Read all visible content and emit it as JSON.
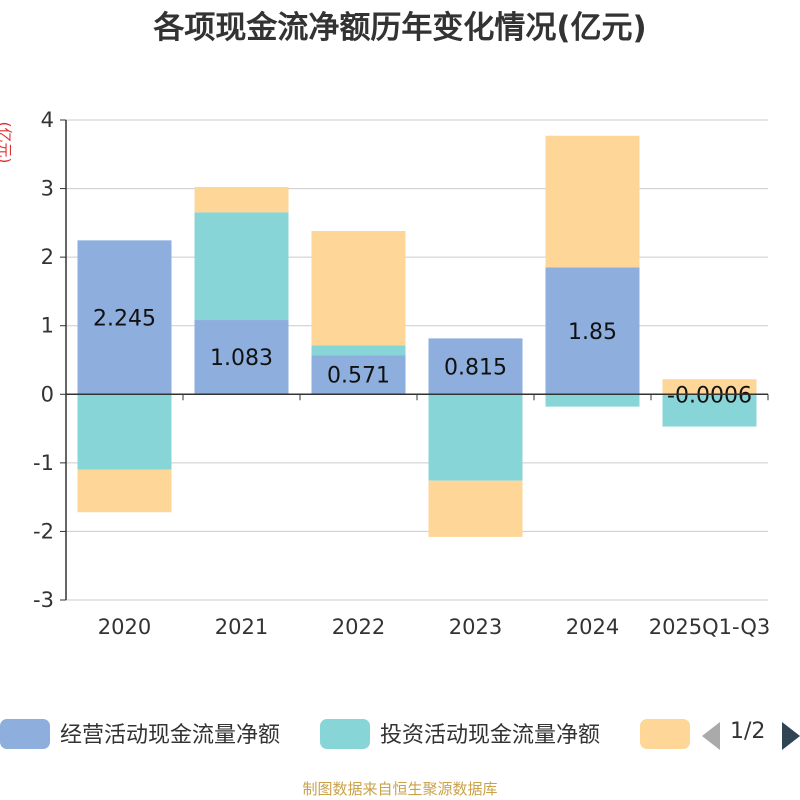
{
  "title": "各项现金流净额历年变化情况(亿元)",
  "y_unit": "(亿元)",
  "source": "制图数据来自恒生聚源数据库",
  "legend_page": "1/2",
  "chart_data": {
    "type": "bar",
    "stacked": true,
    "categories": [
      "2020",
      "2021",
      "2022",
      "2023",
      "2024",
      "2025Q1-Q3"
    ],
    "ylim": [
      -3,
      4
    ],
    "yticks": [
      -3,
      -2,
      -1,
      0,
      1,
      2,
      3,
      4
    ],
    "grid": true,
    "legend_position": "bottom",
    "series": [
      {
        "name": "经营活动现金流量净额",
        "color": "#8eaedd",
        "values": [
          2.245,
          1.083,
          0.571,
          0.815,
          1.85,
          -0.0006
        ],
        "labels": [
          "2.245",
          "1.083",
          "0.571",
          "0.815",
          "1.85",
          "-0.0006"
        ]
      },
      {
        "name": "投资活动现金流量净额",
        "color": "#88d5d8",
        "values": [
          -1.1,
          1.57,
          0.14,
          -1.26,
          -0.18,
          -0.47
        ]
      },
      {
        "name": "",
        "color": "#fdd698",
        "values": [
          -0.62,
          0.37,
          1.67,
          -0.82,
          1.92,
          0.22
        ]
      }
    ]
  }
}
